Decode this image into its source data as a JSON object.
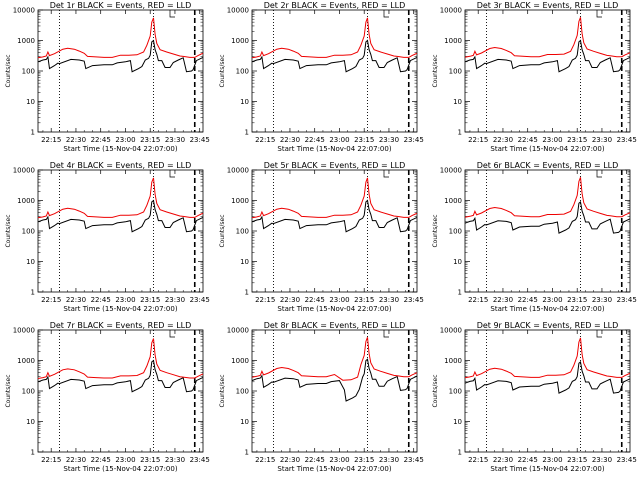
{
  "panels": [
    {
      "title": "Det 1r BLACK = Events, RED = LLD",
      "black_scale": 1.0,
      "red_scale": 1.0,
      "black_dip": 0.0,
      "red_dip": 0.0
    },
    {
      "title": "Det 2r BLACK = Events, RED = LLD",
      "black_scale": 1.0,
      "red_scale": 1.0,
      "black_dip": 0.0,
      "red_dip": 0.0
    },
    {
      "title": "Det 3r BLACK = Events, RED = LLD",
      "black_scale": 1.0,
      "red_scale": 1.05,
      "black_dip": 0.0,
      "red_dip": 0.0
    },
    {
      "title": "Det 4r BLACK = Events, RED = LLD",
      "black_scale": 1.0,
      "red_scale": 1.0,
      "black_dip": 0.0,
      "red_dip": 0.0
    },
    {
      "title": "Det 5r BLACK = Events, RED = LLD",
      "black_scale": 1.0,
      "red_scale": 1.0,
      "black_dip": 0.0,
      "red_dip": 0.0
    },
    {
      "title": "Det 6r BLACK = Events, RED = LLD",
      "black_scale": 0.9,
      "red_scale": 1.05,
      "black_dip": 0.0,
      "red_dip": 0.0
    },
    {
      "title": "Det 7r BLACK = Events, RED = LLD",
      "black_scale": 1.0,
      "red_scale": 0.95,
      "black_dip": 0.0,
      "red_dip": 0.0
    },
    {
      "title": "Det 8r BLACK = Events, RED = LLD",
      "black_scale": 1.1,
      "red_scale": 1.05,
      "black_dip": 0.55,
      "red_dip": 0.35
    },
    {
      "title": "Det 9r BLACK = Events, RED = LLD",
      "black_scale": 0.9,
      "red_scale": 1.0,
      "black_dip": 0.0,
      "red_dip": 0.0
    }
  ],
  "chart_data": {
    "type": "line",
    "ylabel": "Counts/sec",
    "xlabel": "Start Time (15-Nov-04 22:07:00)",
    "yscale": "log",
    "ylim": [
      1,
      10000
    ],
    "ytick_labels": [
      "1",
      "10",
      "100",
      "1000",
      "10000"
    ],
    "xlim_minutes": [
      0,
      100
    ],
    "xtick_labels": [
      "22:15",
      "22:30",
      "22:45",
      "23:00",
      "23:15",
      "23:30",
      "23:45"
    ],
    "xtick_minutes": [
      8,
      23,
      38,
      53,
      68,
      83,
      98
    ],
    "dotted_lines_minutes": [
      13,
      70
    ],
    "dashed_line_minutes": 95,
    "series": [
      {
        "name": "Events",
        "color": "#000000",
        "points": [
          [
            0,
            200
          ],
          [
            3,
            230
          ],
          [
            5,
            240
          ],
          [
            6,
            290
          ],
          [
            7,
            120
          ],
          [
            10,
            150
          ],
          [
            12,
            180
          ],
          [
            13,
            175
          ],
          [
            20,
            240
          ],
          [
            25,
            230
          ],
          [
            28,
            210
          ],
          [
            29,
            120
          ],
          [
            33,
            150
          ],
          [
            40,
            160
          ],
          [
            45,
            160
          ],
          [
            48,
            185
          ],
          [
            53,
            200
          ],
          [
            56,
            220
          ],
          [
            57,
            95
          ],
          [
            61,
            120
          ],
          [
            63,
            140
          ],
          [
            65,
            230
          ],
          [
            67,
            260
          ],
          [
            68,
            330
          ],
          [
            69,
            900
          ],
          [
            70,
            1000
          ],
          [
            71,
            500
          ],
          [
            72,
            350
          ],
          [
            73,
            220
          ],
          [
            75,
            220
          ],
          [
            77,
            130
          ],
          [
            80,
            130
          ],
          [
            82,
            190
          ],
          [
            85,
            230
          ],
          [
            88,
            270
          ],
          [
            90,
            95
          ],
          [
            93,
            100
          ],
          [
            94,
            110
          ],
          [
            96,
            220
          ],
          [
            100,
            280
          ]
        ]
      },
      {
        "name": "LLD",
        "color": "#ee0000",
        "points": [
          [
            0,
            270
          ],
          [
            3,
            290
          ],
          [
            5,
            310
          ],
          [
            6,
            420
          ],
          [
            7,
            320
          ],
          [
            10,
            370
          ],
          [
            15,
            520
          ],
          [
            18,
            560
          ],
          [
            22,
            520
          ],
          [
            25,
            450
          ],
          [
            28,
            380
          ],
          [
            30,
            300
          ],
          [
            35,
            290
          ],
          [
            40,
            280
          ],
          [
            45,
            280
          ],
          [
            50,
            330
          ],
          [
            55,
            330
          ],
          [
            60,
            340
          ],
          [
            64,
            420
          ],
          [
            66,
            700
          ],
          [
            68,
            1400
          ],
          [
            69,
            4000
          ],
          [
            70,
            5500
          ],
          [
            71,
            1600
          ],
          [
            72,
            800
          ],
          [
            74,
            500
          ],
          [
            78,
            420
          ],
          [
            82,
            360
          ],
          [
            86,
            310
          ],
          [
            88,
            300
          ],
          [
            92,
            280
          ],
          [
            95,
            280
          ],
          [
            97,
            320
          ],
          [
            99,
            360
          ],
          [
            100,
            380
          ]
        ]
      }
    ]
  }
}
